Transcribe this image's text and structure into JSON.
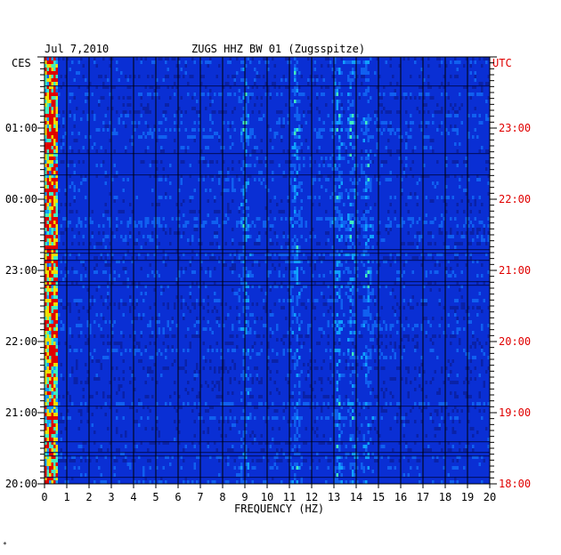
{
  "header": {
    "date": "Jul 7,2010",
    "station": "ZUGS HHZ BW 01 (Zugsspitze)",
    "left_zone": "CES",
    "right_zone": "UTC"
  },
  "chart_data": {
    "type": "heatmap",
    "title": "ZUGS HHZ BW 01 (Zugsspitze)",
    "xlabel": "FREQUENCY (HZ)",
    "xlim": [
      0,
      20
    ],
    "x_ticks": [
      "0",
      "1",
      "2",
      "3",
      "4",
      "5",
      "6",
      "7",
      "8",
      "9",
      "10",
      "11",
      "12",
      "13",
      "14",
      "15",
      "16",
      "17",
      "18",
      "19",
      "20"
    ],
    "left_time_labels": [
      "01:00",
      "00:00",
      "23:00",
      "22:00",
      "21:00",
      "20:00"
    ],
    "right_time_labels": [
      "23:00",
      "22:00",
      "21:00",
      "20:00",
      "19:00",
      "18:00"
    ],
    "time_span_hours": 6,
    "colors": {
      "background": "#0a2fd4",
      "dark_band": "#001a80",
      "right_label": "#e00000",
      "left_label": "#000000"
    },
    "energy_bands_hz": [
      0.3,
      9.0,
      11.3,
      13.2,
      13.8,
      14.5
    ]
  },
  "footnote": "*"
}
